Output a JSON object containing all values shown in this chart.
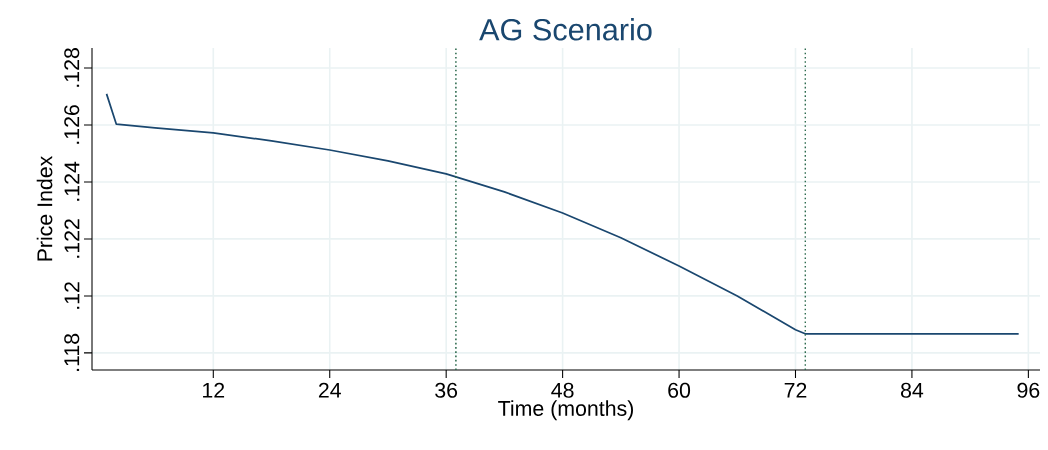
{
  "chart_data": {
    "type": "line",
    "title": "AG Scenario",
    "xlabel": "Time (months)",
    "ylabel": "Price Index",
    "x": [
      1,
      2,
      6,
      12,
      18,
      24,
      30,
      36,
      42,
      48,
      54,
      60,
      66,
      72,
      73,
      95
    ],
    "series": [
      {
        "color": "#1a476f",
        "values": [
          0.12709,
          0.12603,
          0.1259,
          0.12572,
          0.12544,
          0.12512,
          0.12474,
          0.12428,
          0.12365,
          0.12291,
          0.12204,
          0.12105,
          0.12,
          0.11881,
          0.11867,
          0.11867
        ]
      }
    ],
    "xlim": [
      -0.5,
      97.2
    ],
    "ylim": [
      0.1174,
      0.1287
    ],
    "xticks": [
      12,
      24,
      36,
      48,
      60,
      72,
      84,
      96
    ],
    "yticks": [
      {
        "value": 0.118,
        "label": ".118"
      },
      {
        "value": 0.12,
        "label": ".12"
      },
      {
        "value": 0.122,
        "label": ".122"
      },
      {
        "value": 0.124,
        "label": ".124"
      },
      {
        "value": 0.126,
        "label": ".126"
      },
      {
        "value": 0.128,
        "label": ".128"
      }
    ],
    "ref_lines": [
      {
        "axis": "x",
        "value": 37,
        "color": "#2e6b4f",
        "line_style": "dotted"
      },
      {
        "axis": "x",
        "value": 73,
        "color": "#2e6b4f",
        "line_style": "dotted"
      }
    ],
    "grid": true,
    "marker": "none",
    "line_style": "solid"
  }
}
